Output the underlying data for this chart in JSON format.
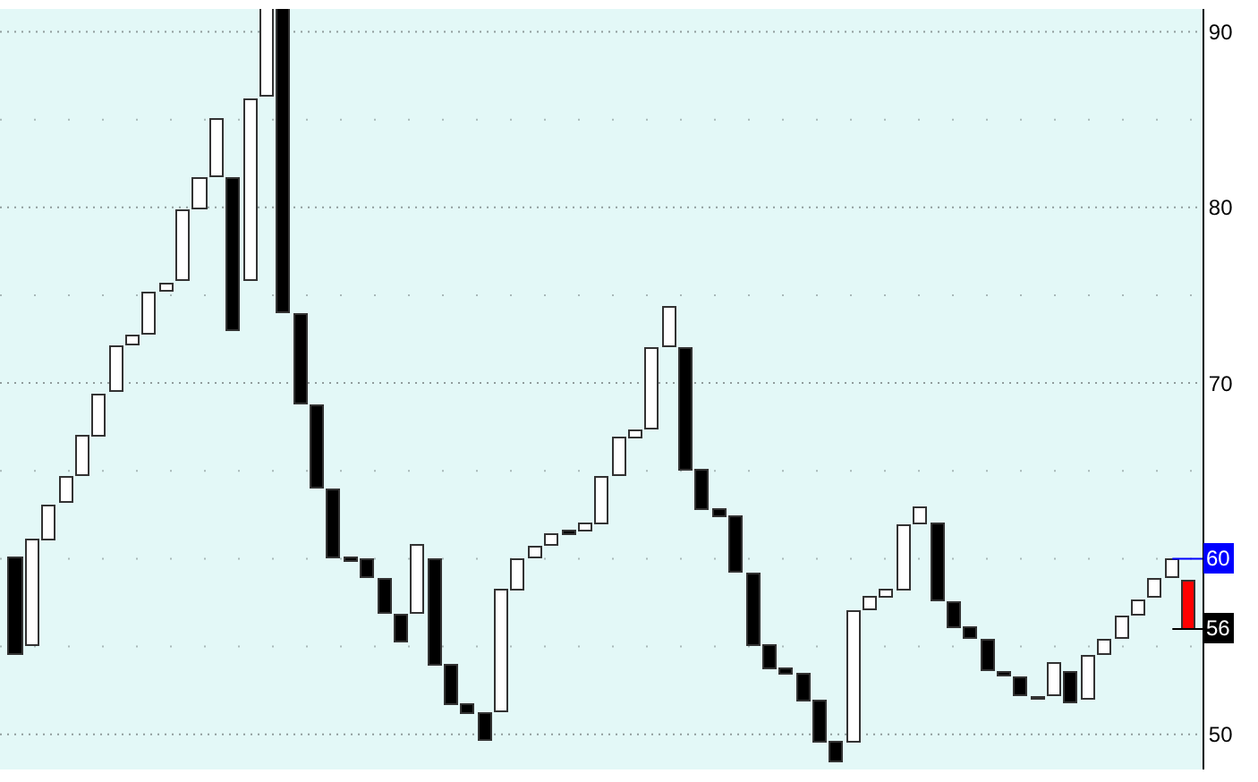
{
  "chart_data": {
    "type": "bar",
    "categories": [
      null,
      null,
      null,
      null,
      null,
      null,
      null,
      null,
      null,
      null,
      null,
      null,
      null,
      null,
      null,
      null,
      null,
      null,
      null,
      null,
      null,
      null,
      null,
      null,
      null,
      null,
      null,
      null,
      null,
      null,
      null,
      null,
      null,
      null,
      null,
      null,
      null,
      null,
      null,
      null,
      null,
      null,
      null,
      null,
      null,
      null,
      null,
      null,
      null,
      null,
      null,
      null,
      null,
      null,
      null,
      null,
      null,
      null,
      null,
      null,
      null,
      null,
      null,
      null,
      null,
      null,
      null,
      null,
      null,
      null,
      null
    ],
    "base": [
      54.5,
      55,
      61,
      63.2,
      64.7,
      67,
      69.5,
      72.1,
      72.8,
      75.2,
      75.8,
      79.9,
      81.7,
      73,
      75.8,
      86.3,
      74,
      68.8,
      64,
      60,
      59.8,
      58.9,
      56.9,
      55.2,
      56.9,
      53.9,
      51.7,
      51.2,
      49.6,
      51.3,
      58.2,
      60,
      60.7,
      61.3,
      61.5,
      62,
      64.7,
      66.8,
      67.4,
      72,
      65,
      62.8,
      62.4,
      59.2,
      55,
      53.7,
      53.4,
      51.9,
      49.5,
      48.4,
      49.5,
      57.1,
      57.8,
      58.2,
      62,
      57.6,
      56.1,
      55.4,
      53.6,
      53.3,
      52.2,
      52,
      52.2,
      51.8,
      52,
      54.5,
      55.4,
      56.8,
      57.8,
      58.9,
      55.9
    ],
    "values": [
      5.5,
      6,
      2,
      1.4,
      2.2,
      2.3,
      2.5,
      0.6,
      2.3,
      0.4,
      4,
      1.7,
      3.3,
      8.6,
      10.3,
      5,
      17.3,
      5.1,
      4.7,
      3.9,
      0.2,
      1,
      1.9,
      1.6,
      3.8,
      6,
      2.2,
      0.5,
      1.6,
      6.9,
      1.7,
      0.6,
      0.6,
      0.2,
      0.5,
      2.6,
      2.1,
      0.5,
      4.5,
      2.3,
      6.9,
      2.2,
      0.4,
      3.2,
      4.1,
      1.3,
      0.3,
      1.5,
      2.4,
      1.1,
      7.5,
      0.7,
      0.4,
      3.7,
      0.9,
      4.4,
      1.4,
      0.7,
      1.7,
      0.2,
      1,
      0.1,
      1.8,
      1.7,
      2.4,
      0.8,
      1.3,
      0.8,
      1,
      1,
      2.8
    ],
    "colors": [
      "#000000",
      "#ffffff",
      "#ffffff",
      "#ffffff",
      "#ffffff",
      "#ffffff",
      "#ffffff",
      "#ffffff",
      "#ffffff",
      "#ffffff",
      "#ffffff",
      "#ffffff",
      "#ffffff",
      "#000000",
      "#ffffff",
      "#ffffff",
      "#000000",
      "#000000",
      "#000000",
      "#000000",
      "#000000",
      "#000000",
      "#000000",
      "#000000",
      "#ffffff",
      "#000000",
      "#000000",
      "#000000",
      "#000000",
      "#ffffff",
      "#ffffff",
      "#ffffff",
      "#ffffff",
      "#000000",
      "#ffffff",
      "#ffffff",
      "#ffffff",
      "#ffffff",
      "#ffffff",
      "#ffffff",
      "#000000",
      "#000000",
      "#000000",
      "#000000",
      "#000000",
      "#000000",
      "#000000",
      "#000000",
      "#000000",
      "#000000",
      "#ffffff",
      "#ffffff",
      "#ffffff",
      "#ffffff",
      "#ffffff",
      "#000000",
      "#000000",
      "#000000",
      "#000000",
      "#000000",
      "#000000",
      "#000000",
      "#ffffff",
      "#000000",
      "#ffffff",
      "#ffffff",
      "#ffffff",
      "#ffffff",
      "#ffffff",
      "#ffffff",
      "#ff0000"
    ],
    "ylim": [
      48,
      91.3
    ],
    "yticks": [
      50,
      {
        "value": 55,
        "label": null
      },
      {
        "value": 60,
        "label": null
      },
      {
        "value": 65,
        "label": null
      },
      70,
      {
        "value": 75,
        "label": null
      },
      80,
      {
        "value": 85,
        "label": null
      },
      90
    ],
    "grid": "y",
    "ref_lines": [
      {
        "axis": "y",
        "value": 60,
        "label": "60",
        "color": "#0000ff"
      },
      {
        "axis": "y",
        "value": 56,
        "label": "56",
        "color": "#000000"
      }
    ]
  }
}
